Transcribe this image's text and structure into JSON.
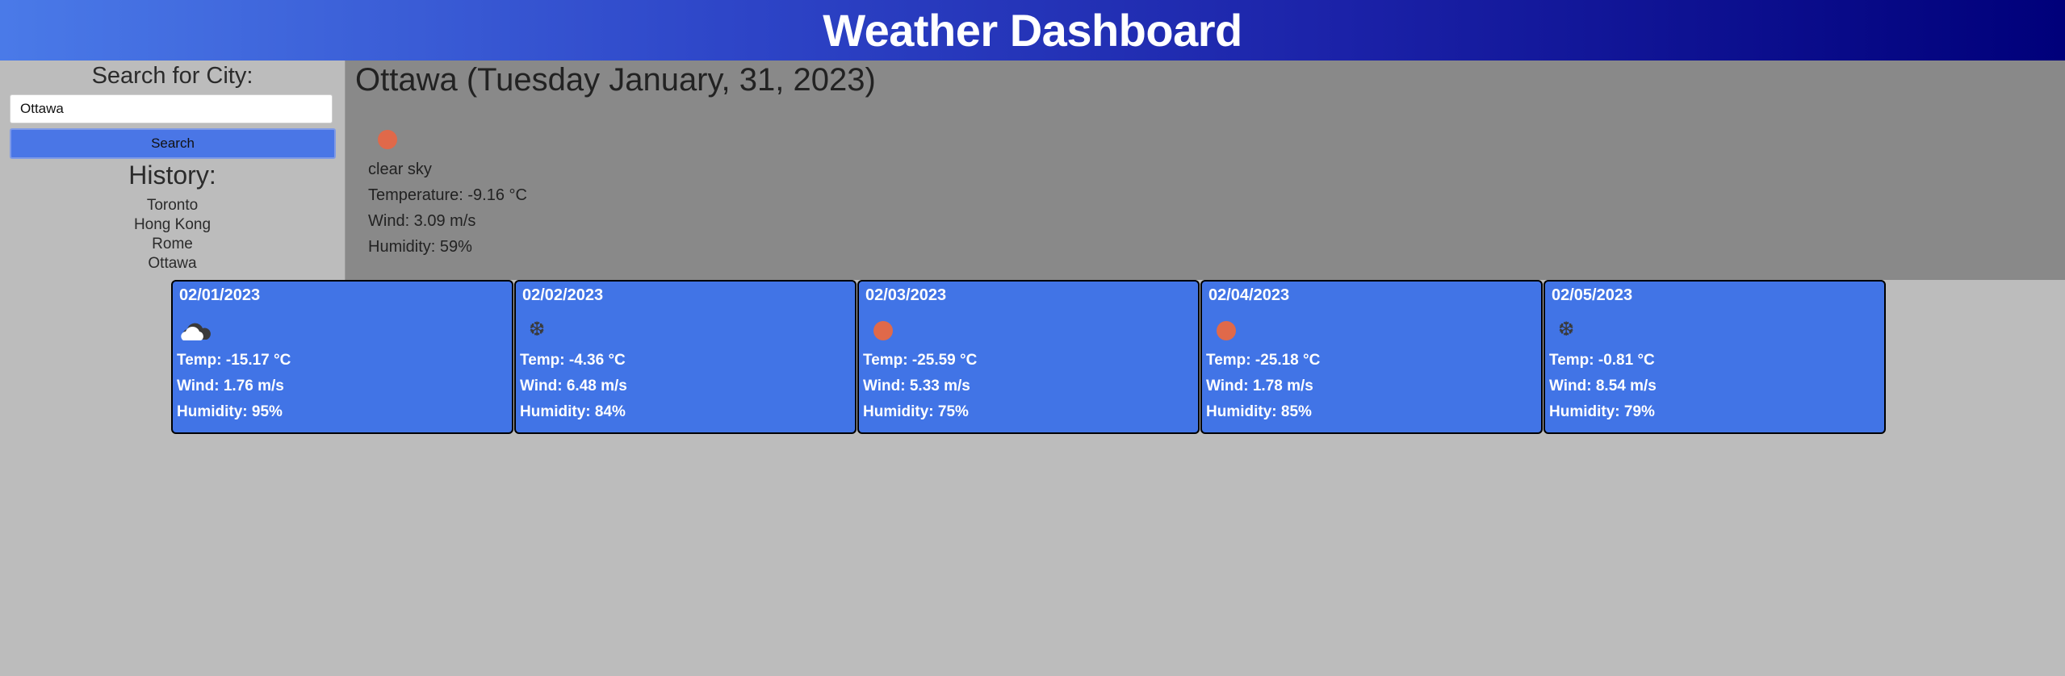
{
  "header": {
    "title": "Weather Dashboard"
  },
  "sidebar": {
    "search_label": "Search for City:",
    "search_value": "Ottawa",
    "search_button": "Search",
    "history_title": "History:",
    "history": [
      "Toronto",
      "Hong Kong",
      "Rome",
      "Ottawa"
    ]
  },
  "current": {
    "title": "Ottawa (Tuesday January, 31, 2023)",
    "icon": "sun-icon",
    "description": "clear sky",
    "temperature": "Temperature: -9.16 °C",
    "wind": "Wind: 3.09 m/s",
    "humidity": "Humidity: 59%"
  },
  "forecast": [
    {
      "date": "02/01/2023",
      "icon": "cloud-icon",
      "temp": "Temp: -15.17 °C",
      "wind": "Wind: 1.76 m/s",
      "humidity": "Humidity: 95%"
    },
    {
      "date": "02/02/2023",
      "icon": "snow-icon",
      "temp": "Temp: -4.36 °C",
      "wind": "Wind: 6.48 m/s",
      "humidity": "Humidity: 84%"
    },
    {
      "date": "02/03/2023",
      "icon": "sun-icon",
      "temp": "Temp: -25.59 °C",
      "wind": "Wind: 5.33 m/s",
      "humidity": "Humidity: 75%"
    },
    {
      "date": "02/04/2023",
      "icon": "sun-icon",
      "temp": "Temp: -25.18 °C",
      "wind": "Wind: 1.78 m/s",
      "humidity": "Humidity: 85%"
    },
    {
      "date": "02/05/2023",
      "icon": "snow-icon",
      "temp": "Temp: -0.81 °C",
      "wind": "Wind: 8.54 m/s",
      "humidity": "Humidity: 79%"
    }
  ],
  "colors": {
    "header_start": "#4a7ae8",
    "header_end": "#00007a",
    "card_bg": "#4174e6",
    "current_bg": "#898989",
    "page_bg": "#bcbcbc",
    "sun": "#e0694a"
  }
}
